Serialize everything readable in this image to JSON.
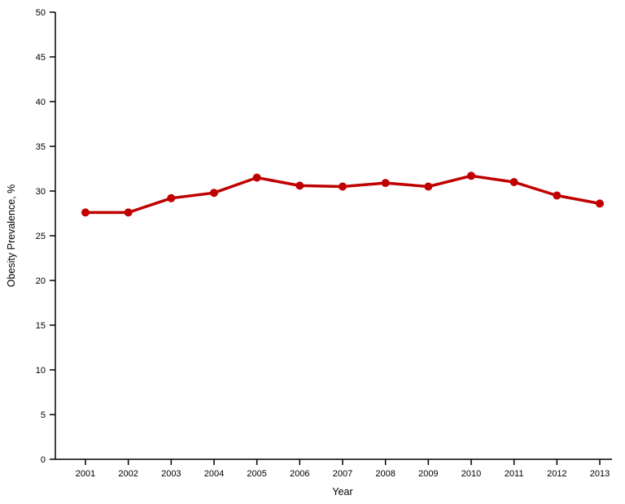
{
  "chart_data": {
    "type": "line",
    "title": "",
    "xlabel": "Year",
    "ylabel": "Obesity Prevalence, %",
    "x": [
      2001,
      2002,
      2003,
      2004,
      2005,
      2006,
      2007,
      2008,
      2009,
      2010,
      2011,
      2012,
      2013
    ],
    "series": [
      {
        "name": "Obesity Prevalence",
        "values": [
          27.6,
          27.6,
          29.2,
          29.8,
          31.5,
          30.6,
          30.5,
          30.9,
          30.5,
          31.7,
          31.0,
          29.5,
          28.6
        ],
        "color": "#c00000"
      }
    ],
    "ylim": [
      0,
      50
    ],
    "y_ticks": [
      0,
      5,
      10,
      15,
      20,
      25,
      30,
      35,
      40,
      45,
      50
    ],
    "grid": false,
    "legend": false,
    "marker": "circle",
    "axis_color": "#000000"
  }
}
